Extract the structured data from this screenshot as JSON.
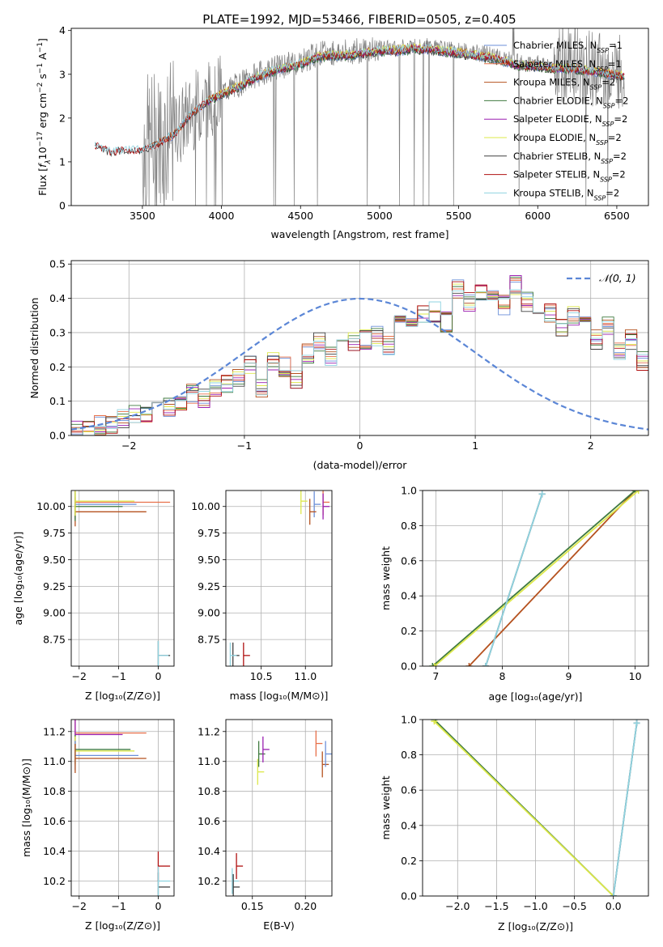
{
  "page": {
    "title": "PLATE=1992, MJD=53466, FIBERID=0505, z=0.405"
  },
  "colors": {
    "Chabrier MILES": "#6b8fd8",
    "Salpeter MILES": "#e8704a",
    "Kroupa MILES": "#b5521f",
    "Chabrier ELODIE": "#3f7a3f",
    "Salpeter ELODIE": "#9a1fb0",
    "Kroupa ELODIE": "#dde84a",
    "Chabrier STELIB": "#404040",
    "Salpeter STELIB": "#b01010",
    "Kroupa STELIB": "#8fd3e0",
    "data": "#808080",
    "normal": "#5b86d6",
    "grid": "#b0b0b0"
  },
  "chart_data": [
    {
      "id": "spectrum",
      "type": "line",
      "title": "PLATE=1992, MJD=53466, FIBERID=0505, z=0.405",
      "xlabel": "wavelength [Angstrom, rest frame]",
      "ylabel": "Flux [f_λ 10^-17 erg cm^-2 s^-1 A^-1]",
      "xlim": [
        3050,
        6700
      ],
      "ylim": [
        0,
        4.05
      ],
      "xticks": [
        "3500",
        "4000",
        "4500",
        "5000",
        "5500",
        "6000",
        "6500"
      ],
      "yticks": [
        "0",
        "1",
        "2",
        "3",
        "4"
      ],
      "grid": false,
      "legend_position": "top-right",
      "legend": [
        {
          "name": "Chabrier MILES",
          "nssp": "1"
        },
        {
          "name": "Salpeter MILES",
          "nssp": "1"
        },
        {
          "name": "Kroupa MILES",
          "nssp": "2"
        },
        {
          "name": "Chabrier ELODIE",
          "nssp": "2"
        },
        {
          "name": "Salpeter ELODIE",
          "nssp": "2"
        },
        {
          "name": "Kroupa ELODIE",
          "nssp": "2"
        },
        {
          "name": "Chabrier STELIB",
          "nssp": "2"
        },
        {
          "name": "Salpeter STELIB",
          "nssp": "2"
        },
        {
          "name": "Kroupa STELIB",
          "nssp": "2"
        }
      ],
      "continuum": {
        "x": [
          3200,
          3300,
          3400,
          3500,
          3600,
          3700,
          3800,
          3900,
          4000,
          4100,
          4200,
          4300,
          4400,
          4500,
          4600,
          4700,
          4800,
          4900,
          5000,
          5100,
          5200,
          5300,
          5400,
          5500,
          5600,
          5700,
          5800,
          5900,
          6000,
          6100,
          6200,
          6300,
          6400,
          6500,
          6550
        ],
        "y": [
          1.4,
          1.25,
          1.3,
          1.3,
          1.45,
          1.65,
          2.1,
          2.4,
          2.6,
          2.75,
          2.95,
          3.1,
          3.2,
          3.3,
          3.45,
          3.5,
          3.5,
          3.55,
          3.6,
          3.6,
          3.65,
          3.65,
          3.6,
          3.55,
          3.5,
          3.45,
          3.35,
          3.25,
          3.25,
          3.2,
          3.2,
          3.15,
          3.1,
          3.05,
          3.0
        ]
      },
      "data_x_range": [
        3500,
        6550
      ],
      "models_x_range": {
        "MILES": [
          3540,
          6550
        ],
        "ELODIE": [
          3900,
          6550
        ],
        "STELIB": [
          3200,
          6550
        ]
      }
    },
    {
      "id": "residuals",
      "type": "histogram",
      "xlabel": "(data-model)/error",
      "ylabel": "Normed distribution",
      "xlim": [
        -2.5,
        2.5
      ],
      "ylim": [
        0,
        0.51
      ],
      "xticks": [
        "−2",
        "−1",
        "0",
        "1",
        "2"
      ],
      "yticks": [
        "0.0",
        "0.1",
        "0.2",
        "0.3",
        "0.4",
        "0.5"
      ],
      "grid": true,
      "legend_position": "top-right",
      "legend": [
        "𝒩(0, 1)"
      ],
      "bin_width": 0.1,
      "bins_start": -2.5,
      "base": [
        0.02,
        0.02,
        0.03,
        0.03,
        0.05,
        0.06,
        0.06,
        0.07,
        0.08,
        0.1,
        0.12,
        0.11,
        0.14,
        0.15,
        0.17,
        0.21,
        0.14,
        0.22,
        0.2,
        0.16,
        0.24,
        0.27,
        0.23,
        0.3,
        0.27,
        0.28,
        0.29,
        0.26,
        0.34,
        0.32,
        0.35,
        0.36,
        0.33,
        0.43,
        0.39,
        0.41,
        0.42,
        0.38,
        0.44,
        0.39,
        0.38,
        0.36,
        0.31,
        0.35,
        0.33,
        0.28,
        0.32,
        0.25,
        0.28,
        0.22
      ]
    },
    {
      "id": "age_vs_z",
      "type": "scatter",
      "xlabel": "Z [log10(Z/Z⊙)]",
      "ylabel": "age [log10(age/yr)]",
      "xlim": [
        -2.2,
        0.4
      ],
      "ylim": [
        8.5,
        10.15
      ],
      "xticks": [
        "−2",
        "−1",
        "0"
      ],
      "yticks": [
        "8.75",
        "9.00",
        "9.25",
        "9.50",
        "9.75",
        "10.00"
      ],
      "grid": true,
      "points": [
        {
          "series": "Chabrier MILES",
          "x": -2.1,
          "x_end": -0.55,
          "y": 10.02
        },
        {
          "series": "Salpeter MILES",
          "x": -2.1,
          "x_end": 0.3,
          "y": 10.04
        },
        {
          "series": "Kroupa MILES",
          "x": -2.1,
          "x_end": -0.3,
          "y": 9.95
        },
        {
          "series": "Chabrier ELODIE",
          "x": -2.1,
          "x_end": -0.9,
          "y": 10.0
        },
        {
          "series": "Kroupa ELODIE",
          "x": -2.1,
          "x_end": -0.6,
          "y": 10.05
        },
        {
          "series": "Chabrier STELIB",
          "x": 0.0,
          "x_end": 0.3,
          "y": 8.6
        },
        {
          "series": "Kroupa STELIB",
          "x": 0.0,
          "x_end": 0.26,
          "y": 8.6
        }
      ]
    },
    {
      "id": "age_vs_mass",
      "type": "scatter",
      "xlabel": "mass [log10(M/M⊙)]",
      "xlim": [
        10.1,
        11.3
      ],
      "ylim": [
        8.5,
        10.15
      ],
      "xticks": [
        "10.5",
        "11.0"
      ],
      "yticks": [
        "8.75",
        "9.00",
        "9.25",
        "9.50",
        "9.75",
        "10.00"
      ],
      "grid": true,
      "points": [
        {
          "series": "Chabrier MILES",
          "x": 11.1,
          "y": 10.02
        },
        {
          "series": "Salpeter MILES",
          "x": 11.2,
          "y": 10.04
        },
        {
          "series": "Kroupa MILES",
          "x": 11.05,
          "y": 9.95
        },
        {
          "series": "Salpeter ELODIE",
          "x": 11.2,
          "y": 10.0
        },
        {
          "series": "Kroupa ELODIE",
          "x": 10.95,
          "y": 10.05
        },
        {
          "series": "Chabrier STELIB",
          "x": 10.18,
          "y": 8.6
        },
        {
          "series": "Salpeter STELIB",
          "x": 10.3,
          "y": 8.6
        },
        {
          "series": "Kroupa STELIB",
          "x": 10.15,
          "y": 8.6
        }
      ]
    },
    {
      "id": "cum_age",
      "type": "line",
      "xlabel": "age [log10(age/yr)]",
      "ylabel": "mass weight",
      "xlim": [
        6.8,
        10.2
      ],
      "ylim": [
        0,
        1
      ],
      "xticks": [
        "7",
        "8",
        "9",
        "10"
      ],
      "yticks": [
        "0.0",
        "0.2",
        "0.4",
        "0.6",
        "0.8",
        "1.0"
      ],
      "grid": true,
      "series": [
        {
          "name": "Kroupa MILES",
          "x": [
            7.5,
            10.0
          ],
          "y": [
            0.0,
            1.0
          ]
        },
        {
          "name": "Chabrier ELODIE",
          "x": [
            6.95,
            10.0
          ],
          "y": [
            0.0,
            1.0
          ]
        },
        {
          "name": "Kroupa ELODIE",
          "x": [
            6.98,
            10.05
          ],
          "y": [
            0.0,
            1.0
          ]
        },
        {
          "name": "Chabrier STELIB",
          "x": [
            7.75,
            8.6
          ],
          "y": [
            0.0,
            0.98
          ]
        },
        {
          "name": "Kroupa STELIB",
          "x": [
            7.75,
            8.6
          ],
          "y": [
            0.0,
            0.98
          ]
        }
      ]
    },
    {
      "id": "mass_vs_z",
      "type": "scatter",
      "xlabel": "Z [log10(Z/Z⊙)]",
      "ylabel": "mass [log10(M/M⊙)]",
      "xlim": [
        -2.2,
        0.4
      ],
      "ylim": [
        10.1,
        11.28
      ],
      "xticks": [
        "−2",
        "−1",
        "0"
      ],
      "yticks": [
        "10.2",
        "10.4",
        "10.6",
        "10.8",
        "11.0",
        "11.2"
      ],
      "grid": true,
      "points": [
        {
          "series": "Salpeter MILES",
          "x": -2.1,
          "x_end": -0.3,
          "y": 11.19
        },
        {
          "series": "Salpeter ELODIE",
          "x": -2.1,
          "x_end": -0.9,
          "y": 11.18
        },
        {
          "series": "Chabrier ELODIE",
          "x": -2.1,
          "x_end": -0.7,
          "y": 11.08
        },
        {
          "series": "Kroupa ELODIE",
          "x": -2.1,
          "x_end": -0.6,
          "y": 11.07
        },
        {
          "series": "Chabrier MILES",
          "x": -2.1,
          "x_end": -0.5,
          "y": 11.04
        },
        {
          "series": "Kroupa MILES",
          "x": -2.1,
          "x_end": -0.3,
          "y": 11.02
        },
        {
          "series": "Salpeter STELIB",
          "x": 0.0,
          "x_end": 0.3,
          "y": 10.3
        },
        {
          "series": "Chabrier STELIB",
          "x": 0.0,
          "x_end": 0.3,
          "y": 10.16
        },
        {
          "series": "Kroupa STELIB",
          "x": 0.0,
          "x_end": 0.3,
          "y": 10.2
        }
      ]
    },
    {
      "id": "mass_vs_ebv",
      "type": "scatter",
      "xlabel": "E(B-V)",
      "xlim": [
        0.125,
        0.225
      ],
      "ylim": [
        10.1,
        11.28
      ],
      "xticks": [
        "0.15",
        "0.20"
      ],
      "yticks": [
        "10.2",
        "10.4",
        "10.6",
        "10.8",
        "11.0",
        "11.2"
      ],
      "grid": true,
      "points": [
        {
          "series": "Kroupa STELIB",
          "x": 0.131,
          "y": 10.2
        },
        {
          "series": "Chabrier STELIB",
          "x": 0.132,
          "y": 10.16
        },
        {
          "series": "Salpeter STELIB",
          "x": 0.135,
          "y": 10.3
        },
        {
          "series": "Kroupa ELODIE",
          "x": 0.155,
          "y": 10.93
        },
        {
          "series": "Chabrier ELODIE",
          "x": 0.156,
          "y": 11.05
        },
        {
          "series": "Salpeter ELODIE",
          "x": 0.16,
          "y": 11.08
        },
        {
          "series": "Salpeter MILES",
          "x": 0.21,
          "y": 11.12
        },
        {
          "series": "Kroupa MILES",
          "x": 0.216,
          "y": 10.98
        },
        {
          "series": "Chabrier MILES",
          "x": 0.219,
          "y": 11.05
        }
      ]
    },
    {
      "id": "cum_z",
      "type": "line",
      "xlabel": "Z [log10(Z/Z⊙)]",
      "ylabel": "mass weight",
      "xlim": [
        -2.45,
        0.45
      ],
      "ylim": [
        0,
        1
      ],
      "xticks": [
        "−2.0",
        "−1.5",
        "−1.0",
        "−0.5",
        "0.0"
      ],
      "yticks": [
        "0.0",
        "0.2",
        "0.4",
        "0.6",
        "0.8",
        "1.0"
      ],
      "grid": true,
      "series": [
        {
          "name": "Chabrier ELODIE",
          "x": [
            -2.3,
            0.0
          ],
          "y": [
            1.0,
            0.0
          ]
        },
        {
          "name": "Kroupa ELODIE",
          "x": [
            -2.3,
            0.0
          ],
          "y": [
            0.99,
            0.0
          ]
        },
        {
          "name": "Chabrier STELIB",
          "x": [
            0.0,
            0.3
          ],
          "y": [
            0.0,
            0.98
          ]
        },
        {
          "name": "Kroupa STELIB",
          "x": [
            0.0,
            0.3
          ],
          "y": [
            0.0,
            0.98
          ]
        }
      ]
    }
  ]
}
